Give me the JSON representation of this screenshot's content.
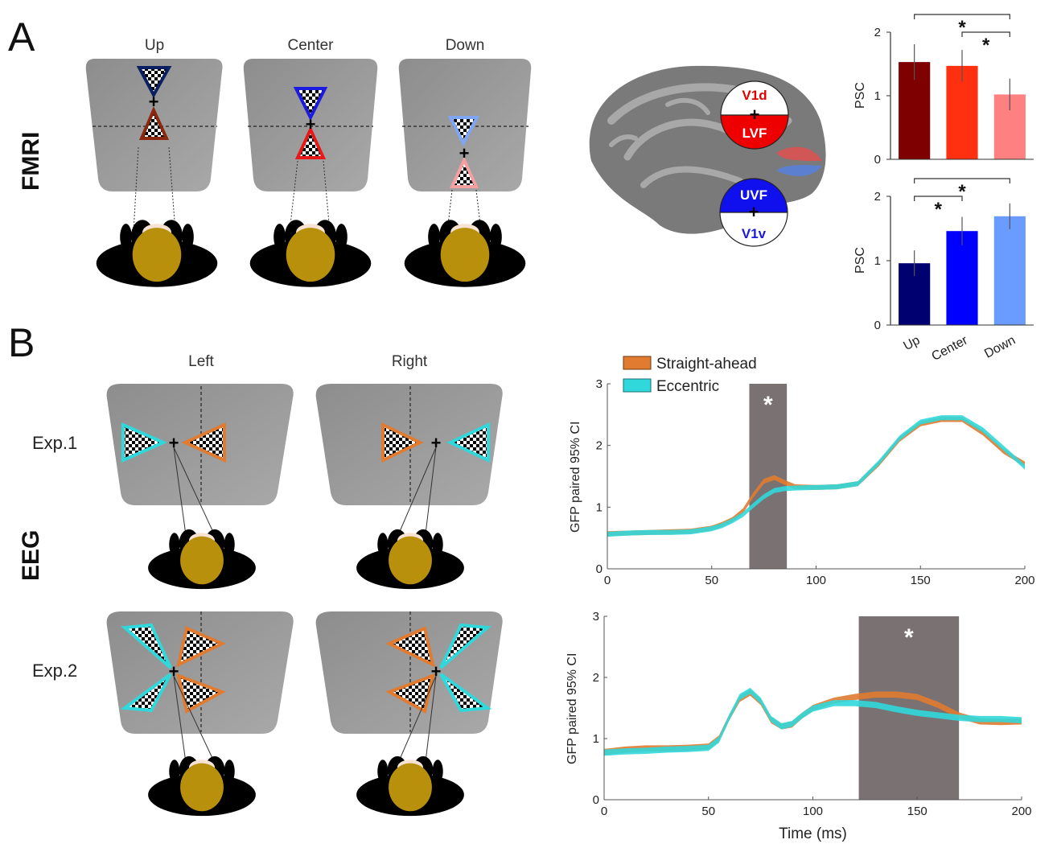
{
  "panel_a": {
    "letter": "A",
    "side_label": "FMRI",
    "conditions": [
      "Up",
      "Center",
      "Down"
    ],
    "brain_labels": {
      "v1d": "V1d",
      "lvf": "LVF",
      "uvf": "UVF",
      "v1v": "V1v"
    }
  },
  "panel_b": {
    "letter": "B",
    "side_label": "EEG",
    "conditions": [
      "Left",
      "Right"
    ],
    "experiments": [
      "Exp.1",
      "Exp.2"
    ]
  },
  "colors": {
    "up_dark": "#7f0000",
    "center_red": "#ff3010",
    "down_pink": "#ff8080",
    "up_navy": "#000070",
    "center_blue": "#0000ff",
    "down_lightblue": "#6a9bff",
    "straight": "#e07b30",
    "eccentric": "#30d8dc",
    "sig_bar": "#7a7272"
  },
  "star": "*",
  "chart_data": [
    {
      "type": "bar",
      "ylabel": "PSC",
      "categories": [
        "Up",
        "Center",
        "Down"
      ],
      "values": [
        1.53,
        1.47,
        1.02
      ],
      "errors": [
        0.28,
        0.25,
        0.25
      ],
      "colors": [
        "#7f0000",
        "#ff3010",
        "#ff8080"
      ],
      "ylim": [
        0,
        2
      ],
      "yticks": [
        "0",
        "1",
        "2"
      ],
      "significance": [
        [
          "Up",
          "Down"
        ],
        [
          "Center",
          "Down"
        ]
      ]
    },
    {
      "type": "bar",
      "ylabel": "PSC",
      "categories": [
        "Up",
        "Center",
        "Down"
      ],
      "values": [
        0.96,
        1.46,
        1.69
      ],
      "errors": [
        0.2,
        0.22,
        0.2
      ],
      "colors": [
        "#000070",
        "#0000ff",
        "#6a9bff"
      ],
      "ylim": [
        0,
        2
      ],
      "yticks": [
        "0",
        "1",
        "2"
      ],
      "xticklabels": [
        "Up",
        "Center",
        "Down"
      ],
      "significance": [
        [
          "Up",
          "Down"
        ],
        [
          "Up",
          "Center"
        ]
      ]
    },
    {
      "type": "area",
      "ylabel": "GFP paired 95% CI",
      "xlim": [
        0,
        200
      ],
      "ylim": [
        0,
        3
      ],
      "xticks": [
        "0",
        "50",
        "100",
        "150",
        "200"
      ],
      "yticks": [
        "0",
        "1",
        "2",
        "3"
      ],
      "legend": [
        "Straight-ahead",
        "Eccentric"
      ],
      "sig_window": [
        68,
        86
      ],
      "series": [
        {
          "name": "Straight-ahead",
          "x": [
            0,
            10,
            20,
            30,
            40,
            50,
            55,
            60,
            65,
            70,
            75,
            80,
            85,
            90,
            100,
            110,
            120,
            130,
            140,
            150,
            160,
            170,
            180,
            190,
            200
          ],
          "y": [
            0.57,
            0.58,
            0.59,
            0.6,
            0.61,
            0.66,
            0.72,
            0.8,
            0.94,
            1.2,
            1.42,
            1.48,
            1.4,
            1.33,
            1.32,
            1.33,
            1.38,
            1.7,
            2.1,
            2.35,
            2.42,
            2.42,
            2.2,
            1.9,
            1.7
          ],
          "width": 0.08
        },
        {
          "name": "Eccentric",
          "x": [
            0,
            10,
            20,
            30,
            40,
            50,
            55,
            60,
            65,
            70,
            75,
            80,
            85,
            90,
            100,
            110,
            120,
            130,
            140,
            150,
            160,
            170,
            180,
            190,
            200
          ],
          "y": [
            0.56,
            0.58,
            0.59,
            0.59,
            0.6,
            0.65,
            0.7,
            0.78,
            0.88,
            1.03,
            1.17,
            1.27,
            1.3,
            1.31,
            1.32,
            1.33,
            1.38,
            1.72,
            2.12,
            2.38,
            2.45,
            2.45,
            2.25,
            1.95,
            1.65
          ],
          "width": 0.08
        }
      ]
    },
    {
      "type": "area",
      "ylabel": "GFP paired 95% CI",
      "xlabel": "Time (ms)",
      "xlim": [
        0,
        200
      ],
      "ylim": [
        0,
        3
      ],
      "xticks": [
        "0",
        "50",
        "100",
        "150",
        "200"
      ],
      "yticks": [
        "0",
        "1",
        "2",
        "3"
      ],
      "sig_window": [
        122,
        170
      ],
      "series": [
        {
          "name": "Straight-ahead",
          "x": [
            0,
            10,
            20,
            30,
            40,
            50,
            55,
            60,
            65,
            70,
            75,
            80,
            85,
            90,
            95,
            100,
            110,
            120,
            130,
            140,
            150,
            160,
            170,
            180,
            190,
            200
          ],
          "y": [
            0.78,
            0.82,
            0.84,
            0.84,
            0.85,
            0.87,
            1.0,
            1.35,
            1.65,
            1.75,
            1.6,
            1.3,
            1.2,
            1.23,
            1.38,
            1.5,
            1.62,
            1.68,
            1.72,
            1.72,
            1.68,
            1.55,
            1.38,
            1.28,
            1.27,
            1.28
          ],
          "width": 0.1
        },
        {
          "name": "Eccentric",
          "x": [
            0,
            10,
            20,
            30,
            40,
            50,
            55,
            60,
            65,
            70,
            75,
            80,
            85,
            90,
            95,
            100,
            110,
            120,
            130,
            140,
            150,
            160,
            170,
            180,
            190,
            200
          ],
          "y": [
            0.77,
            0.79,
            0.8,
            0.82,
            0.83,
            0.85,
            0.98,
            1.35,
            1.68,
            1.78,
            1.62,
            1.32,
            1.2,
            1.24,
            1.38,
            1.49,
            1.58,
            1.58,
            1.55,
            1.48,
            1.42,
            1.38,
            1.34,
            1.32,
            1.32,
            1.3
          ],
          "width": 0.1
        }
      ]
    }
  ]
}
